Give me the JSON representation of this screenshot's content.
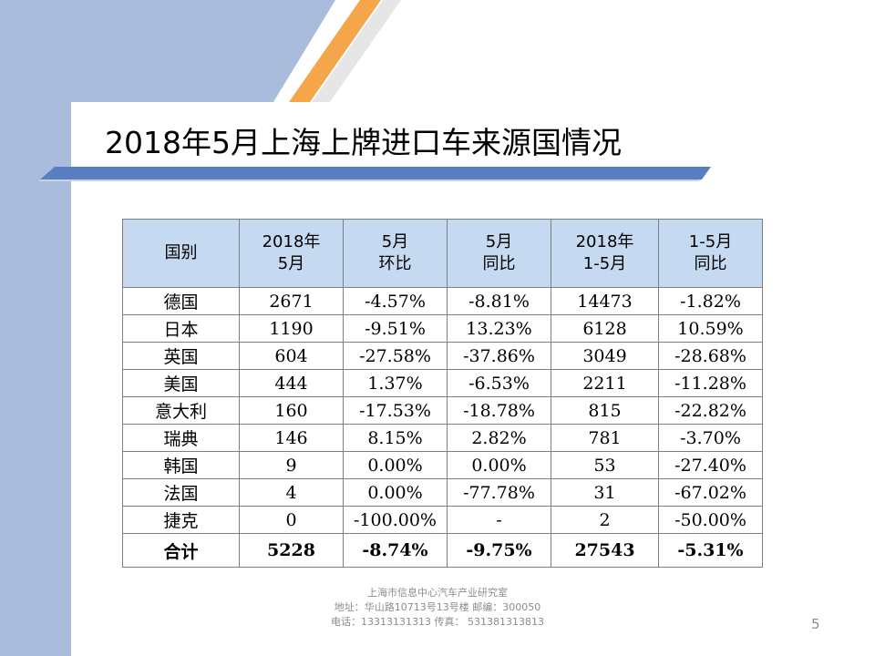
{
  "slide": {
    "title": "2018年5月上海上牌进口车来源国情况",
    "page_number": "5"
  },
  "table": {
    "headers": [
      [
        "国别"
      ],
      [
        "2018年",
        "5月"
      ],
      [
        "5月",
        "环比"
      ],
      [
        "5月",
        "同比"
      ],
      [
        "2018年",
        "1-5月"
      ],
      [
        "1-5月",
        "同比"
      ]
    ],
    "rows": [
      [
        "德国",
        "2671",
        "-4.57%",
        "-8.81%",
        "14473",
        "-1.82%"
      ],
      [
        "日本",
        "1190",
        "-9.51%",
        "13.23%",
        "6128",
        "10.59%"
      ],
      [
        "英国",
        "604",
        "-27.58%",
        "-37.86%",
        "3049",
        "-28.68%"
      ],
      [
        "美国",
        "444",
        "1.37%",
        "-6.53%",
        "2211",
        "-11.28%"
      ],
      [
        "意大利",
        "160",
        "-17.53%",
        "-18.78%",
        "815",
        "-22.82%"
      ],
      [
        "瑞典",
        "146",
        "8.15%",
        "2.82%",
        "781",
        "-3.70%"
      ],
      [
        "韩国",
        "9",
        "0.00%",
        "0.00%",
        "53",
        "-27.40%"
      ],
      [
        "法国",
        "4",
        "0.00%",
        "-77.78%",
        "31",
        "-67.02%"
      ],
      [
        "捷克",
        "0",
        "-100.00%",
        "-",
        "2",
        "-50.00%"
      ]
    ],
    "total": [
      "合计",
      "5228",
      "-8.74%",
      "-9.75%",
      "27543",
      "-5.31%"
    ]
  },
  "footer": {
    "line1": "上海市信息中心汽车产业研究室",
    "line2": "地址：华山路10713号13号楼     邮编：300050",
    "line3": "电话：13313131313    传真：  531381313813"
  },
  "colors": {
    "sidebar": "#a9bcdc",
    "header_fill": "#c5d9f1",
    "accent_orange": "#f5a54a",
    "title_bar": "#5a7fc0"
  }
}
